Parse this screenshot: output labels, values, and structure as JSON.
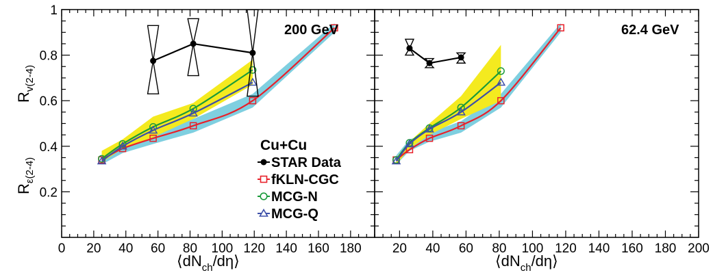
{
  "chart_data": [
    {
      "type": "line",
      "energy_label": "200 GeV",
      "ylabel_top": "R",
      "ylabel_top_sub": "v(2-4)",
      "ylabel_bottom": "R",
      "ylabel_bottom_sub": "ε(2-4)",
      "xlabel": "⟨dN",
      "xlabel_sub": "ch",
      "xlabel_tail": "/dη⟩",
      "xlim": [
        0,
        195
      ],
      "ylim": [
        0,
        1
      ],
      "xticks": [
        "0",
        "20",
        "40",
        "60",
        "80",
        "100",
        "120",
        "140",
        "160",
        "180"
      ],
      "xtick_values": [
        0,
        20,
        40,
        60,
        80,
        100,
        120,
        140,
        160,
        180
      ],
      "yticks": [
        "0.2",
        "0.4",
        "0.6",
        "0.8",
        "1"
      ],
      "ytick_values": [
        0.2,
        0.4,
        0.6,
        0.8,
        1.0
      ],
      "cyan_band": {
        "x": [
          25,
          38,
          57,
          82,
          119,
          170
        ],
        "lower": [
          0.32,
          0.37,
          0.41,
          0.46,
          0.57,
          0.9
        ],
        "upper": [
          0.36,
          0.42,
          0.47,
          0.52,
          0.63,
          0.94
        ]
      },
      "yellow_band": {
        "x": [
          25,
          38,
          57,
          82,
          119
        ],
        "lower": [
          0.33,
          0.39,
          0.44,
          0.52,
          0.67
        ],
        "upper": [
          0.38,
          0.43,
          0.53,
          0.59,
          0.78
        ]
      },
      "series": [
        {
          "name": "STAR Data",
          "color": "#000000",
          "marker": "filled-circle",
          "x": [
            57,
            82,
            119
          ],
          "y": [
            0.775,
            0.85,
            0.81
          ],
          "sys_low": [
            0.63,
            0.71,
            0.62
          ],
          "sys_high": [
            0.93,
            0.96,
            1.0
          ]
        },
        {
          "name": "fKLN-CGC",
          "color": "#e8202a",
          "marker": "square",
          "x": [
            25,
            38,
            57,
            82,
            119,
            170
          ],
          "y": [
            0.34,
            0.39,
            0.435,
            0.49,
            0.6,
            0.92
          ]
        },
        {
          "name": "MCG-N",
          "color": "#1a9a3a",
          "marker": "circle",
          "x": [
            25,
            38,
            57,
            82,
            119
          ],
          "y": [
            0.345,
            0.41,
            0.485,
            0.565,
            0.735
          ]
        },
        {
          "name": "MCG-Q",
          "color": "#3c4fa8",
          "marker": "triangle",
          "x": [
            25,
            38,
            57,
            82,
            119
          ],
          "y": [
            0.335,
            0.4,
            0.47,
            0.545,
            0.68
          ]
        }
      ],
      "legend": {
        "title": "Cu+Cu",
        "entries": [
          "STAR Data",
          "fKLN-CGC",
          "MCG-N",
          "MCG-Q"
        ]
      }
    },
    {
      "type": "line",
      "energy_label": "62.4 GeV",
      "xlabel": "⟨dN",
      "xlabel_sub": "ch",
      "xlabel_tail": "/dη⟩",
      "xlim": [
        5,
        200
      ],
      "ylim": [
        0,
        1
      ],
      "xticks": [
        "20",
        "40",
        "60",
        "80",
        "100",
        "120",
        "140",
        "160",
        "180",
        "200"
      ],
      "xtick_values": [
        20,
        40,
        60,
        80,
        100,
        120,
        140,
        160,
        180,
        200
      ],
      "cyan_band": {
        "x": [
          18,
          26,
          38,
          57,
          81,
          117
        ],
        "lower": [
          0.32,
          0.38,
          0.42,
          0.46,
          0.57,
          0.9
        ],
        "upper": [
          0.36,
          0.43,
          0.46,
          0.51,
          0.63,
          0.94
        ]
      },
      "yellow_band": {
        "x": [
          18,
          26,
          38,
          57,
          81
        ],
        "lower": [
          0.32,
          0.39,
          0.45,
          0.52,
          0.6
        ],
        "upper": [
          0.35,
          0.42,
          0.5,
          0.62,
          0.845
        ]
      },
      "series": [
        {
          "name": "STAR Data",
          "color": "#000000",
          "marker": "filled-circle",
          "x": [
            26,
            38,
            57
          ],
          "y": [
            0.83,
            0.765,
            0.79
          ],
          "sys_low": [
            0.8,
            0.745,
            0.765
          ],
          "sys_high": [
            0.87,
            0.785,
            0.81
          ]
        },
        {
          "name": "fKLN-CGC",
          "color": "#e8202a",
          "marker": "square",
          "x": [
            18,
            26,
            38,
            57,
            81,
            117
          ],
          "y": [
            0.34,
            0.385,
            0.435,
            0.49,
            0.6,
            0.92
          ]
        },
        {
          "name": "MCG-N",
          "color": "#1a9a3a",
          "marker": "circle",
          "x": [
            18,
            26,
            38,
            57,
            81
          ],
          "y": [
            0.34,
            0.415,
            0.48,
            0.57,
            0.73
          ]
        },
        {
          "name": "MCG-Q",
          "color": "#3c4fa8",
          "marker": "triangle",
          "x": [
            18,
            26,
            38,
            57,
            81
          ],
          "y": [
            0.335,
            0.41,
            0.475,
            0.55,
            0.68
          ]
        }
      ]
    }
  ]
}
